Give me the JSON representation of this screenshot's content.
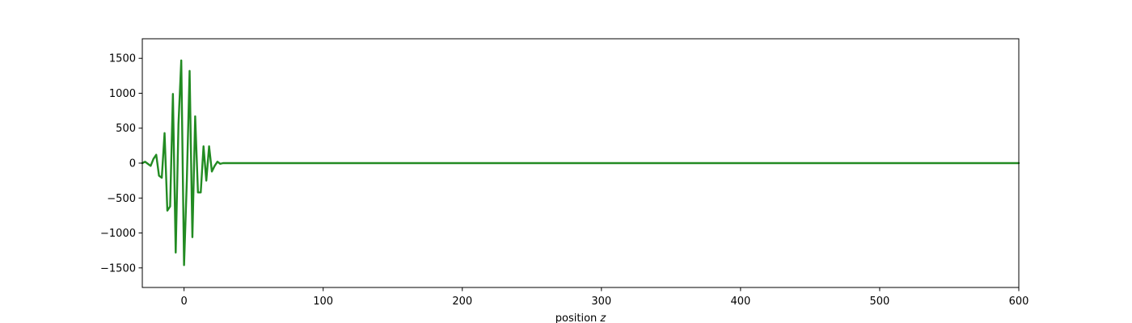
{
  "chart_data": {
    "type": "line",
    "title": "",
    "xlabel": "position",
    "xlabel_var": "z",
    "ylabel": "",
    "xlim": [
      -30,
      600
    ],
    "ylim": [
      -1780,
      1780
    ],
    "x_ticks": [
      0,
      100,
      200,
      300,
      400,
      500,
      600
    ],
    "x_tick_labels": [
      "0",
      "100",
      "200",
      "300",
      "400",
      "500",
      "600"
    ],
    "y_ticks": [
      -1500,
      -1000,
      -500,
      0,
      500,
      1000,
      1500
    ],
    "y_tick_labels": [
      "−1500",
      "−1000",
      "−500",
      "0",
      "500",
      "1000",
      "1500"
    ],
    "grid": false,
    "color": "#228b22",
    "series": [
      {
        "color": "#228b22",
        "x": [
          -30,
          -28,
          -26,
          -24,
          -22,
          -20,
          -18,
          -16,
          -14,
          -12,
          -10,
          -8,
          -6,
          -4,
          -2,
          0,
          2,
          4,
          6,
          8,
          10,
          12,
          14,
          16,
          18,
          20,
          22,
          24,
          26,
          28,
          30,
          600
        ],
        "y": [
          0,
          20,
          -10,
          -40,
          60,
          120,
          -180,
          -210,
          430,
          -680,
          -620,
          990,
          -1280,
          560,
          1470,
          -1460,
          -250,
          1320,
          -1060,
          670,
          -420,
          -420,
          240,
          -250,
          240,
          -120,
          -40,
          20,
          -10,
          0,
          0,
          0
        ]
      }
    ]
  }
}
